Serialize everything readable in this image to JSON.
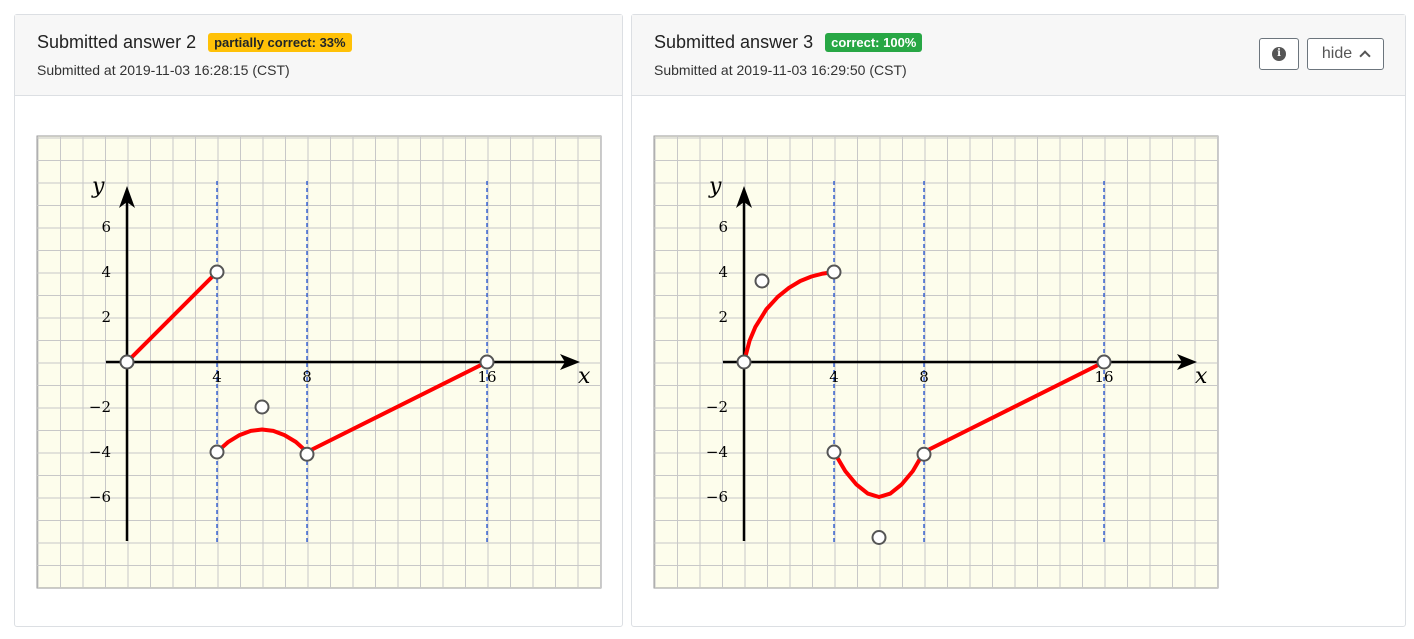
{
  "answers": [
    {
      "title": "Submitted answer 2",
      "badge": "partially correct: 33%",
      "badge_status": "warning",
      "submitted": "Submitted at 2019-11-03 16:28:15 (CST)",
      "graph": {
        "x_label": "x",
        "y_label": "y",
        "x_ticks": [
          "4",
          "8",
          "16"
        ],
        "y_ticks": [
          "6",
          "4",
          "2",
          "−2",
          "−4",
          "−6"
        ],
        "asymptotes_x": [
          4,
          8,
          16
        ],
        "curves": [
          {
            "points": [
              [
                0,
                0
              ],
              [
                4,
                4
              ]
            ]
          },
          {
            "points": [
              [
                4,
                -4
              ],
              [
                4.5,
                -3.55
              ],
              [
                5,
                -3.25
              ],
              [
                5.5,
                -3.06
              ],
              [
                6,
                -3
              ],
              [
                6.5,
                -3.06
              ],
              [
                7,
                -3.25
              ],
              [
                7.5,
                -3.55
              ],
              [
                8,
                -4
              ]
            ]
          },
          {
            "points": [
              [
                8,
                -4
              ],
              [
                16,
                0
              ]
            ]
          }
        ],
        "open_points": [
          [
            0,
            0
          ],
          [
            4,
            4
          ],
          [
            6,
            -2
          ],
          [
            4,
            -4
          ],
          [
            8,
            -4.1
          ],
          [
            16,
            0
          ]
        ]
      }
    },
    {
      "title": "Submitted answer 3",
      "badge": "correct: 100%",
      "badge_status": "success",
      "submitted": "Submitted at 2019-11-03 16:29:50 (CST)",
      "graph": {
        "x_label": "x",
        "y_label": "y",
        "x_ticks": [
          "4",
          "8",
          "16"
        ],
        "y_ticks": [
          "6",
          "4",
          "2",
          "−2",
          "−4",
          "−6"
        ],
        "asymptotes_x": [
          4,
          8,
          16
        ],
        "curves": [
          {
            "points": [
              [
                0,
                0
              ],
              [
                0.25,
                0.95
              ],
              [
                0.5,
                1.55
              ],
              [
                1,
                2.35
              ],
              [
                1.5,
                2.9
              ],
              [
                2,
                3.3
              ],
              [
                2.5,
                3.6
              ],
              [
                3,
                3.8
              ],
              [
                3.5,
                3.93
              ],
              [
                4,
                4
              ]
            ]
          },
          {
            "points": [
              [
                4,
                -4
              ],
              [
                4.5,
                -4.85
              ],
              [
                5,
                -5.45
              ],
              [
                5.5,
                -5.85
              ],
              [
                6,
                -6
              ],
              [
                6.5,
                -5.85
              ],
              [
                7,
                -5.45
              ],
              [
                7.5,
                -4.85
              ],
              [
                8,
                -4
              ]
            ]
          },
          {
            "points": [
              [
                8,
                -4
              ],
              [
                16,
                0
              ]
            ]
          }
        ],
        "open_points": [
          [
            0,
            0
          ],
          [
            4,
            4
          ],
          [
            0.8,
            3.6
          ],
          [
            4,
            -4
          ],
          [
            8,
            -4.1
          ],
          [
            6,
            -7.8
          ],
          [
            16,
            0
          ]
        ]
      }
    }
  ],
  "controls": {
    "info_icon": "info-circle-icon",
    "hide_label": "hide",
    "hide_icon": "chevron-up-icon"
  },
  "colors": {
    "grid_bg": "#fdfdec",
    "grid_line": "#c8c8c8",
    "curve": "#ff0000",
    "asymptote": "#1f4fd0",
    "badge_warning": "#ffc107",
    "badge_success": "#28a745"
  }
}
